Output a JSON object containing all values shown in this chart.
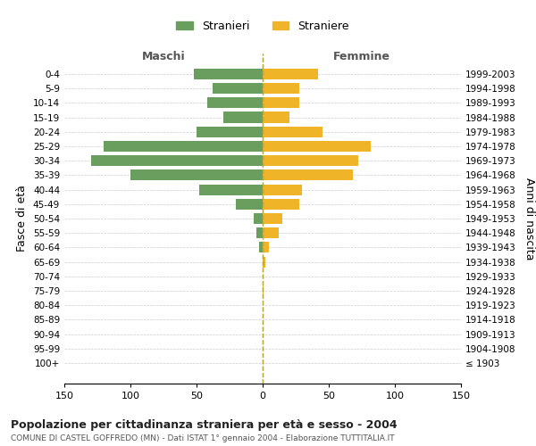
{
  "age_groups": [
    "100+",
    "95-99",
    "90-94",
    "85-89",
    "80-84",
    "75-79",
    "70-74",
    "65-69",
    "60-64",
    "55-59",
    "50-54",
    "45-49",
    "40-44",
    "35-39",
    "30-34",
    "25-29",
    "20-24",
    "15-19",
    "10-14",
    "5-9",
    "0-4"
  ],
  "birth_years": [
    "≤ 1903",
    "1904-1908",
    "1909-1913",
    "1914-1918",
    "1919-1923",
    "1924-1928",
    "1929-1933",
    "1934-1938",
    "1939-1943",
    "1944-1948",
    "1949-1953",
    "1954-1958",
    "1959-1963",
    "1964-1968",
    "1969-1973",
    "1974-1978",
    "1979-1983",
    "1984-1988",
    "1989-1993",
    "1994-1998",
    "1999-2003"
  ],
  "males": [
    0,
    0,
    0,
    0,
    0,
    0,
    0,
    0,
    3,
    5,
    7,
    20,
    48,
    100,
    130,
    120,
    50,
    30,
    42,
    38,
    52
  ],
  "females": [
    0,
    0,
    0,
    0,
    0,
    1,
    0,
    2,
    5,
    12,
    15,
    28,
    30,
    68,
    72,
    82,
    45,
    20,
    28,
    28,
    42
  ],
  "male_color": "#6a9e5e",
  "female_color": "#f0b429",
  "background_color": "#ffffff",
  "grid_color": "#cccccc",
  "title": "Popolazione per cittadinanza straniera per età e sesso - 2004",
  "subtitle": "COMUNE DI CASTEL GOFFREDO (MN) - Dati ISTAT 1° gennaio 2004 - Elaborazione TUTTITALIA.IT",
  "ylabel_left": "Fasce di età",
  "ylabel_right": "Anni di nascita",
  "xlabel_left": "Maschi",
  "xlabel_right": "Femmine",
  "legend_stranieri": "Stranieri",
  "legend_straniere": "Straniere",
  "xlim": 150,
  "dashed_line_color": "#888855"
}
